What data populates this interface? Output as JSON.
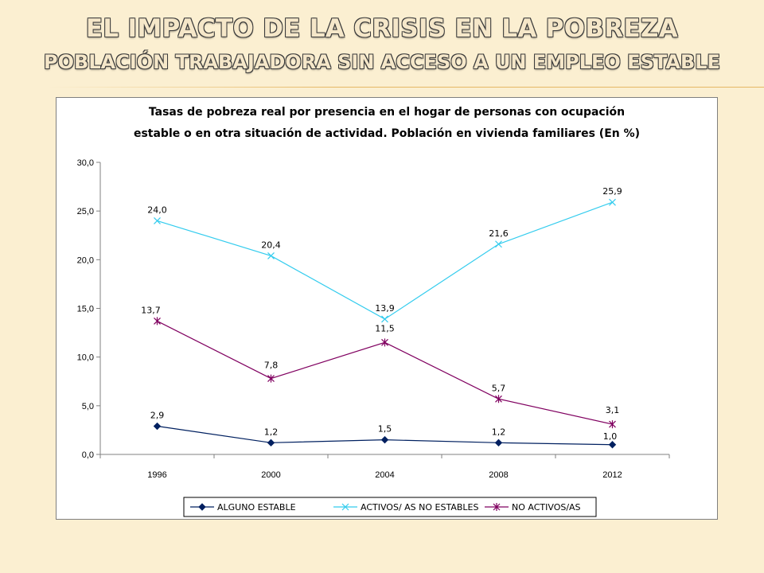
{
  "slide": {
    "title": "EL IMPACTO DE LA CRISIS EN LA POBREZA",
    "subtitle": "POBLACIÓN TRABAJADORA SIN ACCESO A UN EMPLEO ESTABLE"
  },
  "chart_data": {
    "type": "line",
    "title_lines": [
      "Tasas de pobreza real por presencia en el hogar de personas con ocupación",
      "estable o en otra situación de actividad. Población en vivienda familiares (En %)"
    ],
    "categories": [
      "1996",
      "2000",
      "2004",
      "2008",
      "2012"
    ],
    "ylim": [
      0,
      30
    ],
    "yticks": [
      "0,0",
      "5,0",
      "10,0",
      "15,0",
      "20,0",
      "25,0",
      "30,0"
    ],
    "grid": false,
    "legend_position": "bottom",
    "series": [
      {
        "name": "ALGUNO ESTABLE",
        "values": [
          2.9,
          1.2,
          1.5,
          1.2,
          1.0
        ],
        "labels": [
          "2,9",
          "1,2",
          "1,5",
          "1,2",
          "1,0"
        ],
        "color": "#002060",
        "marker": "diamond"
      },
      {
        "name": "ACTIVOS/ AS NO ESTABLES",
        "values": [
          24.0,
          20.4,
          13.9,
          21.6,
          25.9
        ],
        "labels": [
          "24,0",
          "20,4",
          "13,9",
          "21,6",
          "25,9"
        ],
        "color": "#33CCEE",
        "marker": "x"
      },
      {
        "name": "NO ACTIVOS/AS",
        "values": [
          13.7,
          7.8,
          11.5,
          5.7,
          3.1
        ],
        "labels": [
          "13,7",
          "7,8",
          "11,5",
          "5,7",
          "3,1"
        ],
        "color": "#800060",
        "marker": "star"
      }
    ]
  }
}
